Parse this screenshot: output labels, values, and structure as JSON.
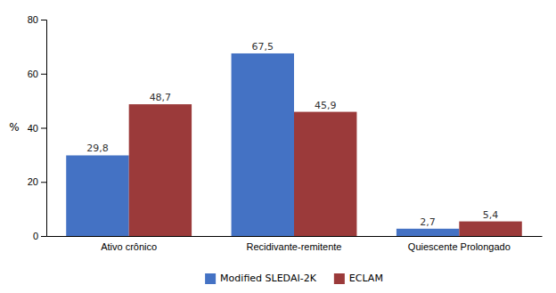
{
  "chart_data": {
    "type": "bar",
    "categories": [
      "Ativo crônico",
      "Recidivante-remitente",
      "Quiescente Prolongado"
    ],
    "series": [
      {
        "name": "Modified SLEDAI-2K",
        "color": "#4472C4",
        "values": [
          29.8,
          67.5,
          2.7
        ],
        "value_labels": [
          "29,8",
          "67,5",
          "2,7"
        ]
      },
      {
        "name": "ECLAM",
        "color": "#9B3A3A",
        "values": [
          48.7,
          45.9,
          5.4
        ],
        "value_labels": [
          "48,7",
          "45,9",
          "5,4"
        ]
      }
    ],
    "ylabel": "%",
    "ylim": [
      0,
      80
    ],
    "yticks": [
      0,
      20,
      40,
      60,
      80
    ],
    "grid": false,
    "legend": "bottom",
    "data_labels": true
  }
}
